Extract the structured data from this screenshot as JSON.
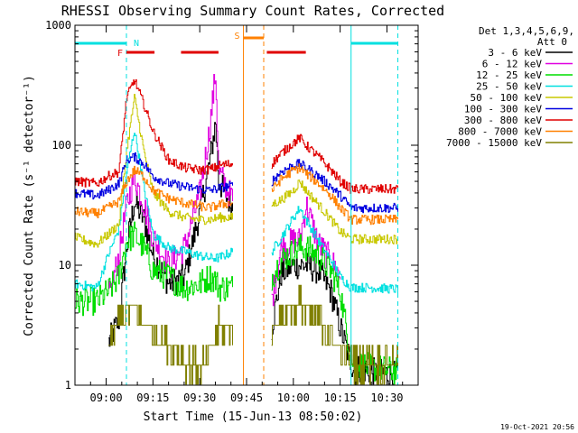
{
  "chart_data": {
    "type": "line",
    "title": "RHESSI Observing Summary Count Rates, Corrected",
    "ylabel": "Corrected Count Rate (s⁻¹ detector⁻¹)",
    "xlabel": "Start Time (15-Jun-13 08:50:02)",
    "yscale": "log",
    "ylim": [
      1,
      1000
    ],
    "xlim_minutes": [
      -10,
      100
    ],
    "x_ticks": [
      {
        "label": "09:00",
        "min": 0
      },
      {
        "label": "09:15",
        "min": 15
      },
      {
        "label": "09:30",
        "min": 30
      },
      {
        "label": "09:45",
        "min": 45
      },
      {
        "label": "10:00",
        "min": 60
      },
      {
        "label": "10:15",
        "min": 75
      },
      {
        "label": "10:30",
        "min": 90
      }
    ],
    "y_ticks": [
      {
        "label": "1",
        "value": 1
      },
      {
        "label": "10",
        "value": 10
      },
      {
        "label": "100",
        "value": 100
      },
      {
        "label": "1000",
        "value": 1000
      }
    ],
    "legend": {
      "placement": "right",
      "header1": "Det 1,3,4,5,6,9,",
      "header2": "Att 0",
      "entries": [
        {
          "label": "3 - 6 keV",
          "color": "#000000"
        },
        {
          "label": "6 - 12 keV",
          "color": "#e000e0"
        },
        {
          "label": "12 - 25 keV",
          "color": "#00dd00"
        },
        {
          "label": "25 - 50 keV",
          "color": "#00e0e0"
        },
        {
          "label": "50 - 100 keV",
          "color": "#c8c800"
        },
        {
          "label": "100 - 300 keV",
          "color": "#0000e0"
        },
        {
          "label": "300 - 800 keV",
          "color": "#e00000"
        },
        {
          "label": "800 - 7000 keV",
          "color": "#ff8000"
        },
        {
          "label": "7000 - 15000 keV",
          "color": "#808000"
        }
      ]
    },
    "flags": {
      "N_label": "N",
      "F_label": "F",
      "S_label": "S",
      "night_color": "#00e0e0",
      "flare_color": "#e00000",
      "saa_color": "#ff8000",
      "night": [
        [
          -10,
          6.5
        ],
        [
          78.5,
          93.5
        ]
      ],
      "night_boundaries": [
        6.5,
        78.5,
        93.5
      ],
      "flare": [
        [
          6.5,
          15.5
        ],
        [
          24,
          36
        ],
        [
          51.5,
          64
        ]
      ],
      "saa": [
        [
          44,
          50.5
        ]
      ],
      "saa_boundaries": [
        44,
        50.5
      ]
    },
    "gap_start": 40.5,
    "gap_end": 53,
    "keyframes_x": [
      -10,
      -3,
      0.5,
      4,
      6.5,
      9,
      12,
      15,
      20,
      25,
      30,
      33,
      35,
      36,
      40.5,
      53,
      56,
      60,
      62,
      64,
      68,
      72,
      75,
      78.5,
      80,
      85,
      93.5
    ],
    "series": [
      {
        "name": "3 - 6 keV",
        "color": "#000000",
        "values": [
          null,
          null,
          2.2,
          3.5,
          14,
          34,
          24,
          12,
          7,
          8,
          28,
          70,
          155,
          50,
          30,
          3,
          8.5,
          10,
          10,
          10,
          9,
          6,
          3,
          1.5,
          1.4,
          1.3,
          1.2
        ]
      },
      {
        "name": "6 - 12 keV",
        "color": "#e000e0",
        "values": [
          null,
          null,
          5,
          12,
          32,
          55,
          32,
          17,
          10,
          14,
          40,
          130,
          400,
          60,
          35,
          5,
          14,
          16,
          16,
          32,
          15,
          11,
          8,
          null,
          null,
          null,
          null
        ]
      },
      {
        "name": "12 - 25 keV",
        "color": "#00dd00",
        "values": [
          5,
          5,
          6,
          8,
          16,
          18,
          14,
          9,
          8,
          6.5,
          7,
          8,
          7.5,
          6.5,
          6.5,
          8,
          11,
          13,
          14,
          14,
          12,
          9,
          6,
          1.6,
          1.5,
          1.4,
          1.3
        ]
      },
      {
        "name": "25 - 50 keV",
        "color": "#00e0e0",
        "values": [
          7,
          6.5,
          12,
          20,
          60,
          135,
          45,
          18,
          14,
          13,
          12,
          11.5,
          11.5,
          11.5,
          13,
          13,
          17,
          25,
          30,
          24,
          16,
          11,
          8,
          6.5,
          6.5,
          6.5,
          6.3
        ]
      },
      {
        "name": "50 - 100 keV",
        "color": "#c8c800",
        "values": [
          17,
          15,
          18,
          22,
          90,
          250,
          90,
          40,
          28,
          25,
          24,
          24,
          24.5,
          25,
          25,
          32,
          35,
          42,
          50,
          42,
          32,
          24,
          19,
          16.5,
          16.5,
          16.5,
          16.5
        ]
      },
      {
        "name": "100 - 300 keV",
        "color": "#0000e0",
        "values": [
          40,
          38,
          42,
          48,
          75,
          80,
          70,
          55,
          48,
          45,
          43,
          42,
          43,
          44,
          46,
          50,
          60,
          68,
          70,
          65,
          55,
          45,
          38,
          30,
          30,
          30,
          30
        ]
      },
      {
        "name": "300 - 800 keV",
        "color": "#e00000",
        "values": [
          50,
          48,
          55,
          60,
          250,
          350,
          220,
          130,
          75,
          65,
          62,
          63,
          65,
          68,
          70,
          70,
          85,
          105,
          115,
          100,
          80,
          62,
          50,
          43,
          43,
          43,
          43
        ]
      },
      {
        "name": "800 - 7000 keV",
        "color": "#ff8000",
        "values": [
          28,
          27,
          30,
          34,
          50,
          62,
          55,
          42,
          36,
          33,
          31,
          30,
          31,
          32,
          33,
          42,
          52,
          62,
          65,
          58,
          48,
          38,
          30,
          24,
          24,
          24,
          24
        ]
      },
      {
        "name": "7000 - 15000 keV",
        "color": "#808000",
        "values": [
          null,
          null,
          2.3,
          3.5,
          4,
          4.5,
          3.5,
          2.8,
          2.2,
          1.6,
          1.4,
          1.8,
          2.5,
          3,
          3,
          3,
          3.8,
          4.5,
          4.5,
          4,
          3.5,
          2.5,
          2,
          1.6,
          1.5,
          1.5,
          1.5
        ]
      }
    ]
  },
  "timestamp": "19-Oct-2021 20:56"
}
